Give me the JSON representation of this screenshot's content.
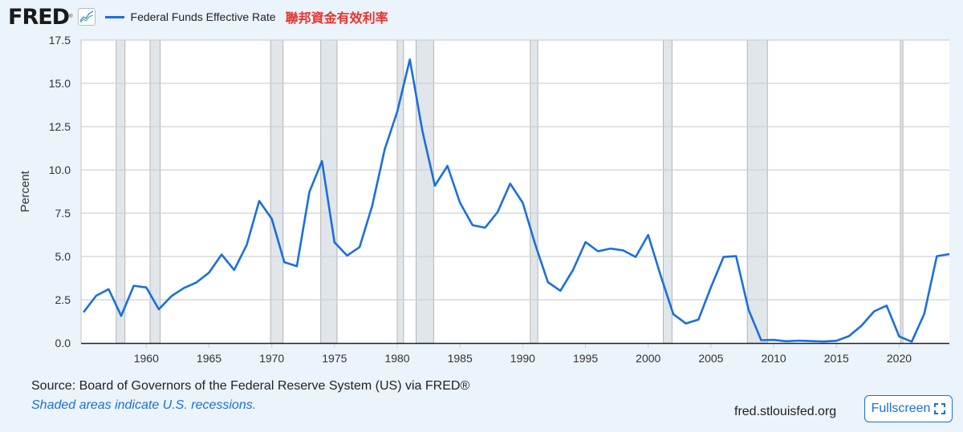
{
  "header": {
    "logo": "FRED",
    "series_label": "Federal Funds Effective Rate",
    "series_label_cn": "聯邦資金有效利率"
  },
  "footer": {
    "source": "Source: Board of Governors of the Federal Reserve System (US) via FRED®",
    "recession_note": "Shaded areas indicate U.S. recessions.",
    "site": "fred.stlouisfed.org",
    "fullscreen_label": "Fullscreen"
  },
  "colors": {
    "line": "#1a6fdf",
    "recession": "#e1e6eb",
    "background": "#ebf3fb"
  },
  "chart_data": {
    "type": "line",
    "title": "Federal Funds Effective Rate",
    "xlabel": "",
    "ylabel": "Percent",
    "xlim": [
      1954.8,
      2024.0
    ],
    "ylim": [
      0,
      17.5
    ],
    "yticks": [
      0.0,
      2.5,
      5.0,
      7.5,
      10.0,
      12.5,
      15.0,
      17.5
    ],
    "ytick_labels": [
      "0.0",
      "2.5",
      "5.0",
      "7.5",
      "10.0",
      "12.5",
      "15.0",
      "17.5"
    ],
    "xticks": [
      1960,
      1965,
      1970,
      1975,
      1980,
      1985,
      1990,
      1995,
      2000,
      2005,
      2010,
      2015,
      2020
    ],
    "xtick_labels": [
      "1960",
      "1965",
      "1970",
      "1975",
      "1980",
      "1985",
      "1990",
      "1995",
      "2000",
      "2005",
      "2010",
      "2015",
      "2020"
    ],
    "grid": true,
    "recessions": [
      [
        1957.6,
        1958.3
      ],
      [
        1960.3,
        1961.1
      ],
      [
        1969.9,
        1970.9
      ],
      [
        1973.9,
        1975.2
      ],
      [
        1980.0,
        1980.5
      ],
      [
        1981.5,
        1982.9
      ],
      [
        1990.6,
        1991.2
      ],
      [
        2001.2,
        2001.9
      ],
      [
        2007.9,
        2009.5
      ],
      [
        2020.1,
        2020.3
      ]
    ],
    "series": [
      {
        "name": "Federal Funds Effective Rate",
        "x": [
          1955,
          1956,
          1957,
          1958,
          1959,
          1960,
          1961,
          1962,
          1963,
          1964,
          1965,
          1966,
          1967,
          1968,
          1969,
          1970,
          1971,
          1972,
          1973,
          1974,
          1975,
          1976,
          1977,
          1978,
          1979,
          1980,
          1981,
          1982,
          1983,
          1984,
          1985,
          1986,
          1987,
          1988,
          1989,
          1990,
          1991,
          1992,
          1993,
          1994,
          1995,
          1996,
          1997,
          1998,
          1999,
          2000,
          2001,
          2002,
          2003,
          2004,
          2005,
          2006,
          2007,
          2008,
          2009,
          2010,
          2011,
          2012,
          2013,
          2014,
          2015,
          2016,
          2017,
          2018,
          2019,
          2020,
          2021,
          2022,
          2023,
          2024
        ],
        "values": [
          1.78,
          2.73,
          3.11,
          1.57,
          3.31,
          3.21,
          1.95,
          2.71,
          3.18,
          3.5,
          4.07,
          5.11,
          4.22,
          5.66,
          8.21,
          7.17,
          4.67,
          4.44,
          8.74,
          10.51,
          5.82,
          5.05,
          5.54,
          7.93,
          11.19,
          13.36,
          16.38,
          12.26,
          9.09,
          10.23,
          8.1,
          6.81,
          6.66,
          7.57,
          9.21,
          8.1,
          5.69,
          3.52,
          3.02,
          4.21,
          5.83,
          5.3,
          5.46,
          5.35,
          4.97,
          6.24,
          3.88,
          1.67,
          1.13,
          1.35,
          3.22,
          4.97,
          5.02,
          1.92,
          0.16,
          0.18,
          0.1,
          0.14,
          0.11,
          0.09,
          0.13,
          0.4,
          1.0,
          1.83,
          2.16,
          0.38,
          0.08,
          1.68,
          5.02,
          5.14
        ]
      }
    ]
  }
}
